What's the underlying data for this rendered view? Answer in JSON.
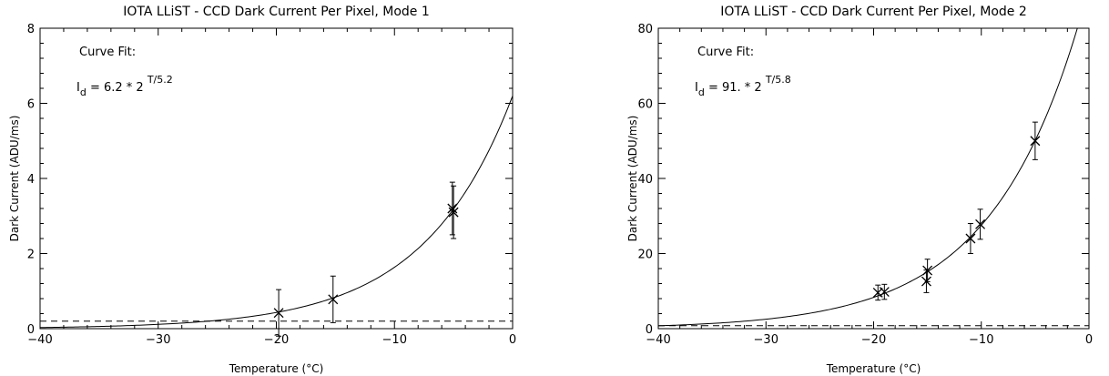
{
  "chart_data": [
    {
      "type": "scatter",
      "title": "IOTA LLiST - CCD Dark Current Per Pixel, Mode 1",
      "xlabel": "Temperature (°C)",
      "ylabel": "Dark Current (ADU/ms)",
      "xlim": [
        -40,
        0
      ],
      "ylim": [
        0,
        8
      ],
      "xticks": [
        -40,
        -30,
        -20,
        -10,
        0
      ],
      "yticks": [
        0,
        2,
        4,
        6,
        8
      ],
      "annotation": {
        "heading": "Curve Fit:",
        "base": "I",
        "subscript": "d",
        "body": " = 6.2 * 2",
        "exponent": "T/5.2"
      },
      "fit": {
        "a": 6.2,
        "b": 5.2
      },
      "baseline": 0.2,
      "points": [
        {
          "x": -19.8,
          "y": 0.42,
          "yerr": 0.62
        },
        {
          "x": -15.2,
          "y": 0.78,
          "yerr": 0.62
        },
        {
          "x": -5.1,
          "y": 3.2,
          "yerr": 0.7
        },
        {
          "x": -5.0,
          "y": 3.1,
          "yerr": 0.7
        }
      ]
    },
    {
      "type": "scatter",
      "title": "IOTA LLiST - CCD Dark Current Per Pixel, Mode 2",
      "xlabel": "Temperature (°C)",
      "ylabel": "Dark Current (ADU/ms)",
      "xlim": [
        -40,
        0
      ],
      "ylim": [
        0,
        80
      ],
      "xticks": [
        -40,
        -30,
        -20,
        -10,
        0
      ],
      "yticks": [
        0,
        20,
        40,
        60,
        80
      ],
      "annotation": {
        "heading": "Curve Fit:",
        "base": "I",
        "subscript": "d",
        "body": " = 91. * 2",
        "exponent": "T/5.8"
      },
      "fit": {
        "a": 91,
        "b": 5.8
      },
      "baseline": 0.8,
      "points": [
        {
          "x": -19.6,
          "y": 9.6,
          "yerr": 2.0
        },
        {
          "x": -19.0,
          "y": 9.8,
          "yerr": 2.0
        },
        {
          "x": -15.1,
          "y": 12.6,
          "yerr": 3.0
        },
        {
          "x": -15.0,
          "y": 15.5,
          "yerr": 3.0
        },
        {
          "x": -11.0,
          "y": 24.0,
          "yerr": 4.0
        },
        {
          "x": -10.1,
          "y": 27.8,
          "yerr": 4.0
        },
        {
          "x": -5.0,
          "y": 50.0,
          "yerr": 5.0
        }
      ]
    }
  ]
}
